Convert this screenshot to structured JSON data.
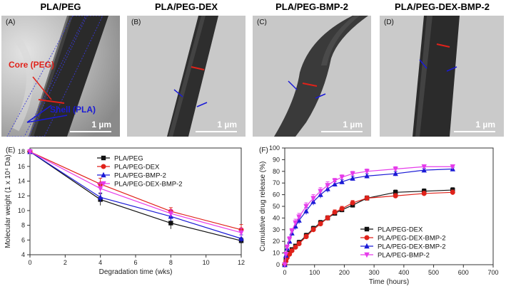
{
  "panel_titles": [
    "PLA/PEG",
    "PLA/PEG-DEX",
    "PLA/PEG-BMP-2",
    "PLA/PEG-DEX-BMP-2"
  ],
  "panel_labels": [
    "(A)",
    "(B)",
    "(C)",
    "(D)",
    "(E)",
    "(F)"
  ],
  "scale_label": "1 µm",
  "annotations": {
    "core": "Core (PEG)",
    "shell": "Shell (PLA)"
  },
  "colors": {
    "red": "#e0221a",
    "blue": "#1a1ad6",
    "black": "#111111",
    "magenta": "#e63bea"
  },
  "chart_data": [
    {
      "type": "line",
      "xlabel": "Degradation time (wks)",
      "ylabel": "Molecular weight (1 x 10⁴ Da)",
      "xlim": [
        0,
        12
      ],
      "ylim": [
        4,
        18.5
      ],
      "xticks": [
        0,
        2,
        4,
        6,
        8,
        10,
        12
      ],
      "yticks": [
        4,
        6,
        8,
        10,
        12,
        14,
        16,
        18
      ],
      "x": [
        0,
        4,
        8,
        12
      ],
      "legend": "top-right",
      "series": [
        {
          "name": "PLA/PEG",
          "color": "#111111",
          "marker": "square",
          "values": [
            18.0,
            11.5,
            8.3,
            5.9
          ],
          "errors": [
            0.3,
            0.8,
            0.8,
            0.4
          ]
        },
        {
          "name": "PLA/PEG-DEX",
          "color": "#e0221a",
          "marker": "circle",
          "values": [
            18.0,
            13.6,
            9.9,
            7.4
          ],
          "errors": [
            0.3,
            0.8,
            0.5,
            0.7
          ]
        },
        {
          "name": "PLA/PEG-BMP-2",
          "color": "#1a1ad6",
          "marker": "triangle-up",
          "values": [
            18.0,
            11.8,
            9.2,
            6.2
          ],
          "errors": [
            0.3,
            0.6,
            0.6,
            0.5
          ]
        },
        {
          "name": "PLA/PEG-DEX-BMP-2",
          "color": "#e63bea",
          "marker": "triangle-down",
          "values": [
            18.0,
            13.0,
            9.6,
            7.0
          ],
          "errors": [
            0.3,
            0.8,
            0.5,
            0.6
          ]
        }
      ]
    },
    {
      "type": "line",
      "xlabel": "Time (hours)",
      "ylabel": "Cumulative drug release (%)",
      "xlim": [
        0,
        700
      ],
      "ylim": [
        0,
        100
      ],
      "xticks": [
        0,
        100,
        200,
        300,
        400,
        500,
        600,
        700
      ],
      "yticks": [
        0,
        10,
        20,
        30,
        40,
        50,
        60,
        70,
        80,
        90,
        100
      ],
      "legend": "bottom-right",
      "series": [
        {
          "name": "PLA/PEG-DEX",
          "color": "#111111",
          "marker": "square",
          "x": [
            0,
            4,
            8,
            16,
            24,
            36,
            48,
            72,
            96,
            120,
            144,
            168,
            192,
            228,
            276,
            372,
            468,
            564
          ],
          "values": [
            0,
            4,
            7,
            10,
            13,
            16,
            19,
            25,
            31,
            36,
            40,
            44,
            47,
            51,
            57,
            62,
            63,
            64
          ],
          "errors": [
            0.5,
            1,
            1,
            1,
            1.5,
            1.5,
            2,
            2,
            2,
            2,
            2,
            2,
            2,
            2,
            2,
            2,
            2,
            2
          ]
        },
        {
          "name": "PLA/PEG-DEX-BMP-2",
          "color": "#e0221a",
          "marker": "circle",
          "x": [
            0,
            4,
            8,
            16,
            24,
            36,
            48,
            72,
            96,
            120,
            144,
            168,
            192,
            228,
            276,
            372,
            468,
            564
          ],
          "values": [
            0,
            3,
            6,
            9,
            12,
            15,
            18,
            24,
            30,
            35,
            40,
            45,
            48,
            53,
            57,
            59,
            61,
            62
          ],
          "errors": [
            0.5,
            1,
            1,
            1,
            1.5,
            1.5,
            2,
            2,
            2,
            2,
            2,
            2,
            2,
            2,
            2,
            2,
            2,
            2
          ]
        },
        {
          "name": "PLA/PEG-DEX-BMP-2",
          "color": "#1a1ad6",
          "marker": "triangle-up",
          "x": [
            0,
            4,
            8,
            16,
            24,
            36,
            48,
            72,
            96,
            120,
            144,
            168,
            192,
            228,
            276,
            372,
            468,
            564
          ],
          "values": [
            0,
            8,
            14,
            20,
            27,
            33,
            38,
            46,
            54,
            60,
            65,
            69,
            71,
            74,
            76,
            78,
            81,
            82
          ],
          "errors": [
            0.5,
            1.5,
            2,
            2,
            2,
            3,
            3,
            3,
            3,
            3,
            3,
            2,
            2,
            2,
            2,
            2,
            1.5,
            1.5
          ]
        },
        {
          "name": "PLA/PEG-BMP-2",
          "color": "#e63bea",
          "marker": "triangle-down",
          "x": [
            0,
            4,
            8,
            16,
            24,
            36,
            48,
            72,
            96,
            120,
            144,
            168,
            192,
            228,
            276,
            372,
            468,
            564
          ],
          "values": [
            0,
            9,
            15,
            22,
            29,
            36,
            41,
            50,
            57,
            63,
            68,
            72,
            75,
            78,
            80,
            82,
            84,
            84
          ],
          "errors": [
            0.5,
            1.5,
            2,
            2,
            2,
            3,
            3,
            3,
            3,
            3,
            3,
            2,
            2,
            2,
            2,
            2,
            1.5,
            1.5
          ]
        }
      ]
    }
  ]
}
